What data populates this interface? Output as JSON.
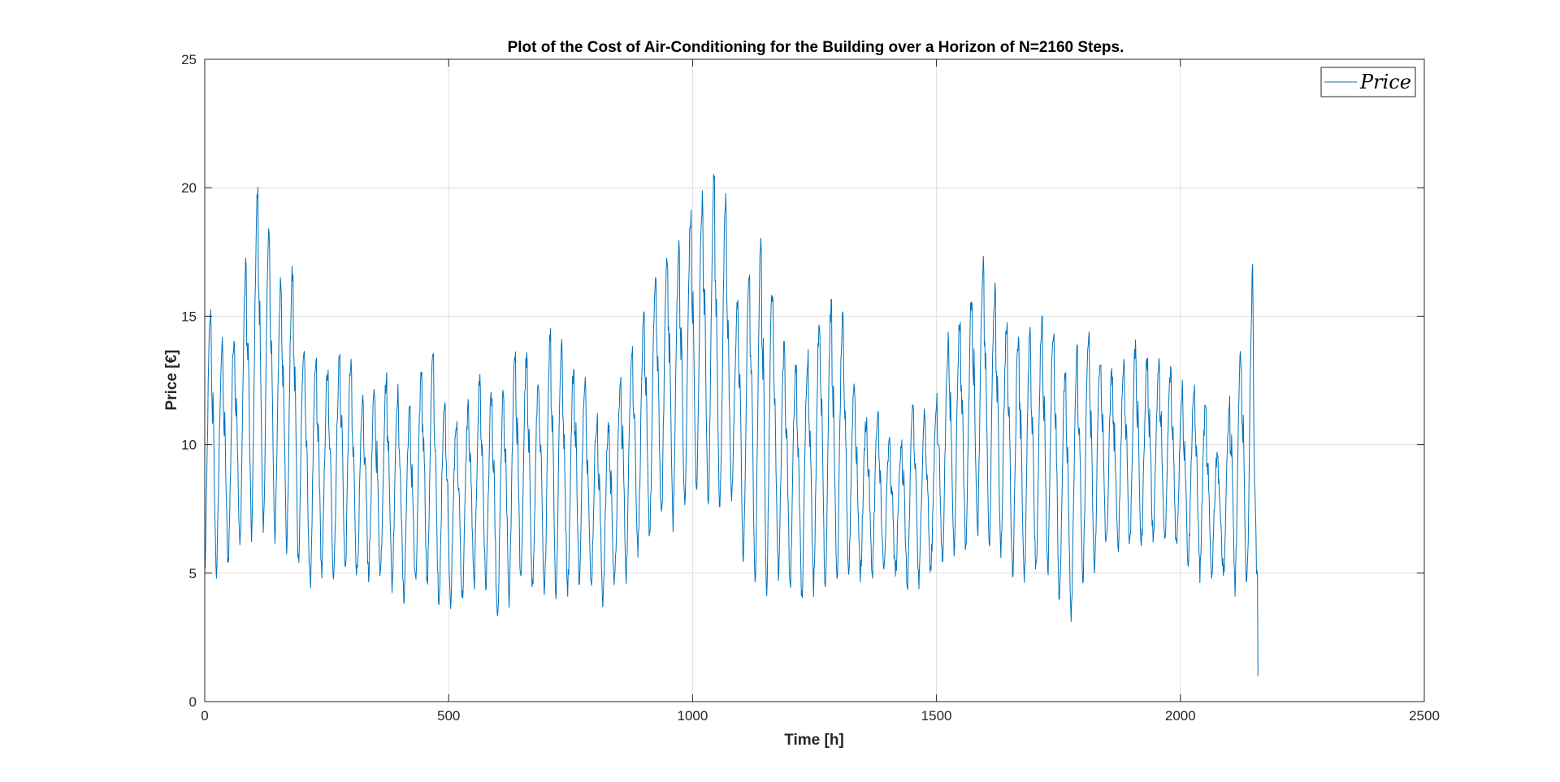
{
  "chart_data": {
    "type": "line",
    "title": "Plot of the Cost of Air-Conditioning for the Building over a Horizon of N=2160 Steps.",
    "xlabel": "Time [h]",
    "ylabel": "Price [€]",
    "xlim": [
      0,
      2500
    ],
    "ylim": [
      0,
      25
    ],
    "xticks": [
      0,
      500,
      1000,
      1500,
      2000,
      2500
    ],
    "yticks": [
      0,
      5,
      10,
      15,
      20,
      25
    ],
    "xtick_labels": [
      "0",
      "500",
      "1000",
      "1500",
      "2000",
      "2500"
    ],
    "ytick_labels": [
      "0",
      "5",
      "10",
      "15",
      "20",
      "25"
    ],
    "grid": true,
    "legend": {
      "position": "top-right",
      "entries": [
        "Price"
      ]
    },
    "series": [
      {
        "name": "Price",
        "color": "#0072BD",
        "period": 24,
        "n_points": 2160,
        "peaks": [
          [
            0,
            15.5
          ],
          [
            24,
            14.5
          ],
          [
            48,
            13
          ],
          [
            72,
            15.5
          ],
          [
            96,
            18.3
          ],
          [
            110,
            20
          ],
          [
            130,
            18.3
          ],
          [
            150,
            16
          ],
          [
            170,
            17.2
          ],
          [
            190,
            16
          ],
          [
            210,
            12.5
          ],
          [
            240,
            13.5
          ],
          [
            264,
            12
          ],
          [
            288,
            14.8
          ],
          [
            312,
            11
          ],
          [
            336,
            12
          ],
          [
            360,
            12
          ],
          [
            384,
            13
          ],
          [
            408,
            11
          ],
          [
            432,
            11.5
          ],
          [
            456,
            14.2
          ],
          [
            480,
            12.5
          ],
          [
            504,
            11
          ],
          [
            528,
            10.5
          ],
          [
            552,
            12.5
          ],
          [
            576,
            12.6
          ],
          [
            600,
            11
          ],
          [
            624,
            12.8
          ],
          [
            648,
            14.5
          ],
          [
            672,
            12
          ],
          [
            696,
            13
          ],
          [
            720,
            15.5
          ],
          [
            744,
            12
          ],
          [
            768,
            13.8
          ],
          [
            792,
            11.5
          ],
          [
            816,
            10.5
          ],
          [
            840,
            11
          ],
          [
            864,
            13.8
          ],
          [
            888,
            14
          ],
          [
            912,
            15.5
          ],
          [
            936,
            17.3
          ],
          [
            960,
            17.5
          ],
          [
            984,
            17.8
          ],
          [
            1008,
            19.8
          ],
          [
            1032,
            19.2
          ],
          [
            1044,
            20.5
          ],
          [
            1056,
            18
          ],
          [
            1068,
            19.8
          ],
          [
            1080,
            15
          ],
          [
            1104,
            16
          ],
          [
            1128,
            17.5
          ],
          [
            1152,
            18
          ],
          [
            1176,
            14
          ],
          [
            1200,
            13.5
          ],
          [
            1224,
            12.5
          ],
          [
            1248,
            14.5
          ],
          [
            1272,
            15.2
          ],
          [
            1296,
            15.5
          ],
          [
            1320,
            14
          ],
          [
            1344,
            10.5
          ],
          [
            1368,
            11.5
          ],
          [
            1392,
            10.5
          ],
          [
            1416,
            9.5
          ],
          [
            1440,
            11
          ],
          [
            1464,
            12
          ],
          [
            1488,
            10.5
          ],
          [
            1512,
            13
          ],
          [
            1536,
            15
          ],
          [
            1560,
            14.5
          ],
          [
            1584,
            17.2
          ],
          [
            1608,
            16.8
          ],
          [
            1632,
            15
          ],
          [
            1656,
            14
          ],
          [
            1680,
            14.5
          ],
          [
            1704,
            13.8
          ],
          [
            1728,
            15.8
          ],
          [
            1752,
            13
          ],
          [
            1776,
            12.5
          ],
          [
            1800,
            14.5
          ],
          [
            1824,
            13.8
          ],
          [
            1848,
            13
          ],
          [
            1872,
            12.5
          ],
          [
            1896,
            13.8
          ],
          [
            1920,
            13.5
          ],
          [
            1944,
            13
          ],
          [
            1968,
            13
          ],
          [
            1992,
            12.5
          ],
          [
            2016,
            11.8
          ],
          [
            2040,
            12.5
          ],
          [
            2064,
            10
          ],
          [
            2088,
            9.5
          ],
          [
            2112,
            13.5
          ],
          [
            2136,
            13.5
          ],
          [
            2148,
            16.7
          ],
          [
            2160,
            1
          ]
        ],
        "troughs": [
          [
            0,
            5
          ],
          [
            24,
            5
          ],
          [
            48,
            5.5
          ],
          [
            72,
            6
          ],
          [
            96,
            6.5
          ],
          [
            120,
            6.5
          ],
          [
            144,
            6.5
          ],
          [
            168,
            6
          ],
          [
            192,
            5.5
          ],
          [
            216,
            4.5
          ],
          [
            240,
            5
          ],
          [
            264,
            5
          ],
          [
            288,
            5
          ],
          [
            312,
            5
          ],
          [
            336,
            5
          ],
          [
            360,
            5
          ],
          [
            384,
            4.5
          ],
          [
            408,
            4
          ],
          [
            432,
            4.5
          ],
          [
            456,
            4.5
          ],
          [
            480,
            3.5
          ],
          [
            504,
            4
          ],
          [
            528,
            4
          ],
          [
            552,
            4.5
          ],
          [
            576,
            4.5
          ],
          [
            600,
            3
          ],
          [
            624,
            4
          ],
          [
            648,
            4.5
          ],
          [
            672,
            4.5
          ],
          [
            696,
            4
          ],
          [
            720,
            4
          ],
          [
            744,
            4.5
          ],
          [
            768,
            4.5
          ],
          [
            792,
            4.5
          ],
          [
            816,
            4
          ],
          [
            840,
            4.5
          ],
          [
            864,
            5
          ],
          [
            888,
            6
          ],
          [
            912,
            6.5
          ],
          [
            936,
            7
          ],
          [
            960,
            7
          ],
          [
            984,
            7.5
          ],
          [
            1008,
            8
          ],
          [
            1032,
            7.5
          ],
          [
            1056,
            7.5
          ],
          [
            1080,
            8
          ],
          [
            1104,
            5.5
          ],
          [
            1128,
            4.5
          ],
          [
            1152,
            4.5
          ],
          [
            1176,
            5
          ],
          [
            1200,
            4.5
          ],
          [
            1224,
            4
          ],
          [
            1248,
            4.5
          ],
          [
            1272,
            4.5
          ],
          [
            1296,
            4.5
          ],
          [
            1320,
            5
          ],
          [
            1344,
            5
          ],
          [
            1368,
            5
          ],
          [
            1392,
            5
          ],
          [
            1416,
            5
          ],
          [
            1440,
            4.5
          ],
          [
            1464,
            4.5
          ],
          [
            1488,
            5
          ],
          [
            1512,
            5.5
          ],
          [
            1536,
            6
          ],
          [
            1560,
            6
          ],
          [
            1584,
            6.5
          ],
          [
            1608,
            6
          ],
          [
            1632,
            6
          ],
          [
            1656,
            5
          ],
          [
            1680,
            4.5
          ],
          [
            1704,
            5
          ],
          [
            1728,
            5
          ],
          [
            1752,
            4
          ],
          [
            1776,
            3.5
          ],
          [
            1800,
            4.5
          ],
          [
            1824,
            5
          ],
          [
            1848,
            6
          ],
          [
            1872,
            6
          ],
          [
            1896,
            6
          ],
          [
            1920,
            6
          ],
          [
            1944,
            6.5
          ],
          [
            1968,
            6
          ],
          [
            1992,
            6
          ],
          [
            2016,
            5.5
          ],
          [
            2040,
            5
          ],
          [
            2064,
            5
          ],
          [
            2088,
            5
          ],
          [
            2112,
            4.5
          ],
          [
            2136,
            4.5
          ],
          [
            2160,
            5
          ]
        ]
      }
    ]
  }
}
